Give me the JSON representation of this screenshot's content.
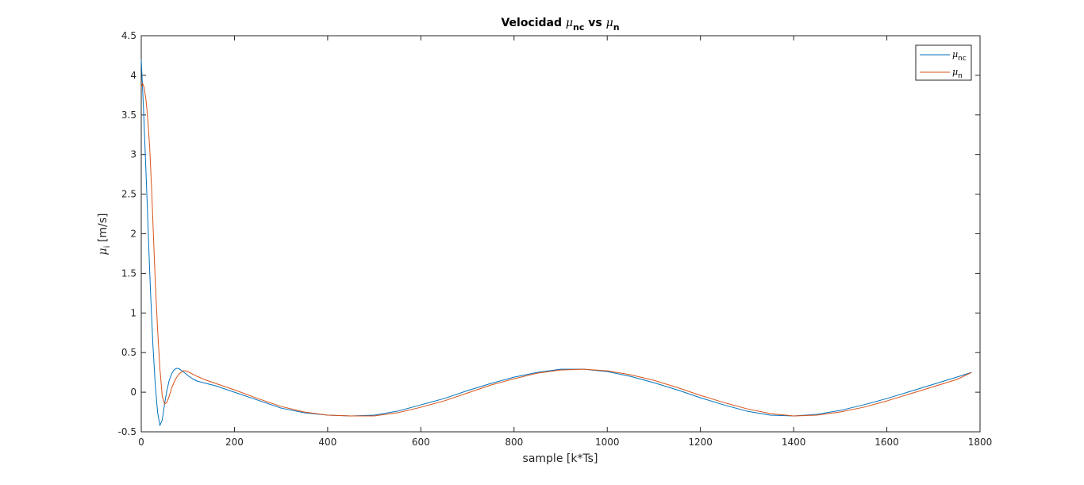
{
  "chart_data": {
    "type": "line",
    "title": {
      "prefix": "Velocidad ",
      "sym1": "μ",
      "sub1": "nc",
      "mid": " vs ",
      "sym2": "μ",
      "sub2": "n"
    },
    "xlabel": "sample [k*Ts]",
    "ylabel": {
      "sym": "μ",
      "sub": "i",
      "unit": " [m/s]"
    },
    "xlim": [
      0,
      1800
    ],
    "ylim": [
      -0.5,
      4.5
    ],
    "xticks": [
      0,
      200,
      400,
      600,
      800,
      1000,
      1200,
      1400,
      1600,
      1800
    ],
    "yticks": [
      -0.5,
      0,
      0.5,
      1,
      1.5,
      2,
      2.5,
      3,
      3.5,
      4,
      4.5
    ],
    "xtick_labels": [
      "0",
      "200",
      "400",
      "600",
      "800",
      "1000",
      "1200",
      "1400",
      "1600",
      "1800"
    ],
    "ytick_labels": [
      "-0.5",
      "0",
      "0.5",
      "1",
      "1.5",
      "2",
      "2.5",
      "3",
      "3.5",
      "4",
      "4.5"
    ],
    "grid": false,
    "legend_position": "top-right",
    "series": [
      {
        "name": "μnc",
        "legend_sym": "μ",
        "legend_sub": "nc",
        "color": "#0072BD",
        "x": [
          0,
          2,
          5,
          8,
          12,
          16,
          20,
          25,
          30,
          35,
          40,
          45,
          50,
          55,
          60,
          65,
          70,
          75,
          80,
          85,
          90,
          100,
          110,
          120,
          140,
          160,
          180,
          200,
          250,
          300,
          350,
          400,
          450,
          500,
          550,
          600,
          650,
          700,
          750,
          800,
          850,
          900,
          950,
          1000,
          1050,
          1100,
          1150,
          1200,
          1250,
          1300,
          1350,
          1400,
          1450,
          1500,
          1550,
          1600,
          1650,
          1700,
          1750,
          1782
        ],
        "y": [
          4.2,
          3.95,
          3.55,
          3.1,
          2.5,
          1.85,
          1.25,
          0.6,
          0.1,
          -0.25,
          -0.42,
          -0.35,
          -0.15,
          0.02,
          0.15,
          0.23,
          0.28,
          0.3,
          0.3,
          0.28,
          0.26,
          0.21,
          0.17,
          0.14,
          0.11,
          0.08,
          0.04,
          0.0,
          -0.1,
          -0.2,
          -0.26,
          -0.29,
          -0.3,
          -0.29,
          -0.24,
          -0.16,
          -0.08,
          0.02,
          0.11,
          0.19,
          0.25,
          0.29,
          0.29,
          0.26,
          0.2,
          0.12,
          0.03,
          -0.07,
          -0.16,
          -0.24,
          -0.29,
          -0.3,
          -0.28,
          -0.23,
          -0.16,
          -0.08,
          0.01,
          0.1,
          0.19,
          0.25
        ]
      },
      {
        "name": "μn",
        "legend_sym": "μ",
        "legend_sub": "n",
        "color": "#D95319",
        "x": [
          0,
          3,
          6,
          10,
          14,
          18,
          22,
          26,
          30,
          35,
          40,
          45,
          50,
          55,
          60,
          65,
          70,
          75,
          80,
          85,
          90,
          95,
          100,
          110,
          120,
          140,
          160,
          180,
          200,
          250,
          300,
          350,
          400,
          450,
          500,
          550,
          600,
          650,
          700,
          750,
          800,
          850,
          900,
          950,
          1000,
          1050,
          1100,
          1150,
          1200,
          1250,
          1300,
          1350,
          1400,
          1450,
          1500,
          1550,
          1600,
          1650,
          1700,
          1750,
          1782
        ],
        "y": [
          3.85,
          3.9,
          3.85,
          3.7,
          3.45,
          3.1,
          2.6,
          2.0,
          1.4,
          0.8,
          0.3,
          -0.05,
          -0.15,
          -0.13,
          -0.05,
          0.05,
          0.12,
          0.18,
          0.22,
          0.25,
          0.27,
          0.27,
          0.26,
          0.23,
          0.2,
          0.15,
          0.11,
          0.07,
          0.03,
          -0.08,
          -0.18,
          -0.25,
          -0.29,
          -0.3,
          -0.3,
          -0.26,
          -0.19,
          -0.11,
          -0.01,
          0.09,
          0.17,
          0.24,
          0.28,
          0.29,
          0.27,
          0.22,
          0.15,
          0.06,
          -0.04,
          -0.13,
          -0.21,
          -0.27,
          -0.3,
          -0.29,
          -0.25,
          -0.19,
          -0.11,
          -0.02,
          0.07,
          0.16,
          0.25
        ]
      }
    ]
  }
}
